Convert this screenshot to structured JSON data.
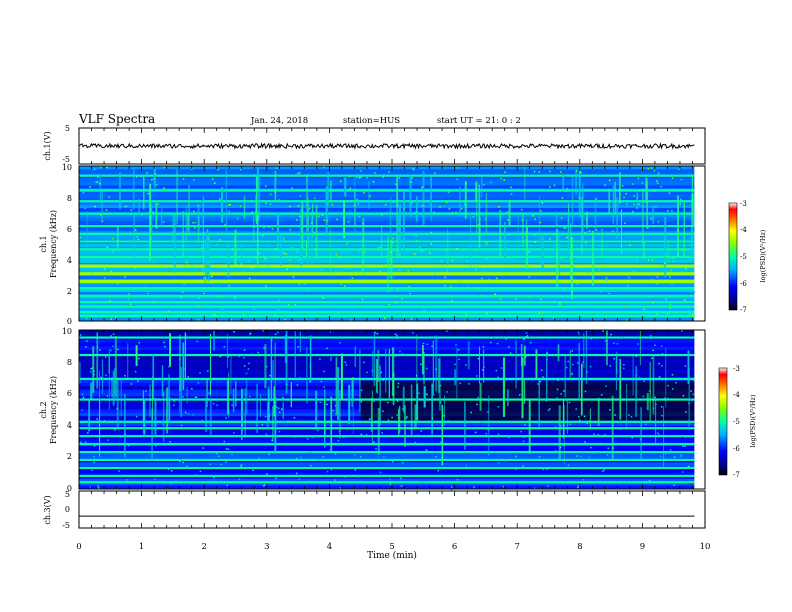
{
  "header": {
    "title": "VLF Spectra",
    "date": "Jan. 24, 2018",
    "station": "station=HUS",
    "start": "start UT =  21: 0  : 2"
  },
  "chart_data": [
    {
      "type": "line",
      "panel": "channel-1-waveform",
      "ylabel": "ch.1(V)",
      "ylim": [
        -5,
        5
      ],
      "yticks": [
        "5",
        "-5"
      ],
      "xlim": [
        0,
        10
      ],
      "data_extent_min": 9.83,
      "baseline": 0.0,
      "amplitude": 0.6,
      "color": "#000000"
    },
    {
      "type": "heatmap",
      "panel": "channel-1-spectrogram",
      "ylabel": "ch.1",
      "ylabel2": "Frequency (kHz)",
      "ylim": [
        0,
        10
      ],
      "yticks": [
        "0",
        "2",
        "4",
        "6",
        "8",
        "10"
      ],
      "xlim": [
        0,
        10
      ],
      "data_extent_min": 9.83,
      "colorbar": {
        "label": "log(PSD)(V²/Hz)",
        "range": [
          -7,
          -3
        ],
        "ticks": [
          "-3",
          "-4",
          "-5",
          "-6",
          "-7"
        ]
      },
      "bands_khz": [
        0.3,
        0.55,
        0.9,
        1.2,
        1.6,
        2.1,
        2.55,
        3.05,
        3.55,
        4.1,
        4.6,
        5.1,
        5.6,
        6.1,
        6.9,
        7.7,
        8.4,
        9.35
      ],
      "background_level": -5.8,
      "bright_band_khz": [
        2.5,
        3.0,
        3.5
      ]
    },
    {
      "type": "heatmap",
      "panel": "channel-2-spectrogram",
      "ylabel": "ch.2",
      "ylabel2": "Frequency (kHz)",
      "ylim": [
        0,
        10
      ],
      "yticks": [
        "0",
        "2",
        "4",
        "6",
        "8",
        "10"
      ],
      "xlim": [
        0,
        10
      ],
      "data_extent_min": 9.83,
      "colorbar": {
        "label": "log(PSD)(V²/Hz)",
        "range": [
          -7,
          -3
        ],
        "ticks": [
          "-3",
          "-4",
          "-5",
          "-6",
          "-7"
        ]
      },
      "bands_khz": [
        0.4,
        0.8,
        1.3,
        1.8,
        2.3,
        2.8,
        3.3,
        3.8,
        4.2,
        5.6,
        6.9,
        8.4,
        9.5
      ],
      "background_level": -6.3,
      "bright_band_khz": [
        3.5
      ]
    },
    {
      "type": "line",
      "panel": "channel-3-waveform",
      "ylabel": "ch.3(V)",
      "ylim": [
        -5,
        5
      ],
      "yticks": [
        "5",
        "0",
        "-5"
      ],
      "xlim": [
        0,
        10
      ],
      "data_extent_min": 9.83,
      "baseline": -1.8,
      "amplitude": 0.0,
      "color": "#000000"
    }
  ],
  "xaxis": {
    "label": "Time (min)",
    "ticks": [
      "0",
      "1",
      "2",
      "3",
      "4",
      "5",
      "6",
      "7",
      "8",
      "9",
      "10"
    ]
  }
}
